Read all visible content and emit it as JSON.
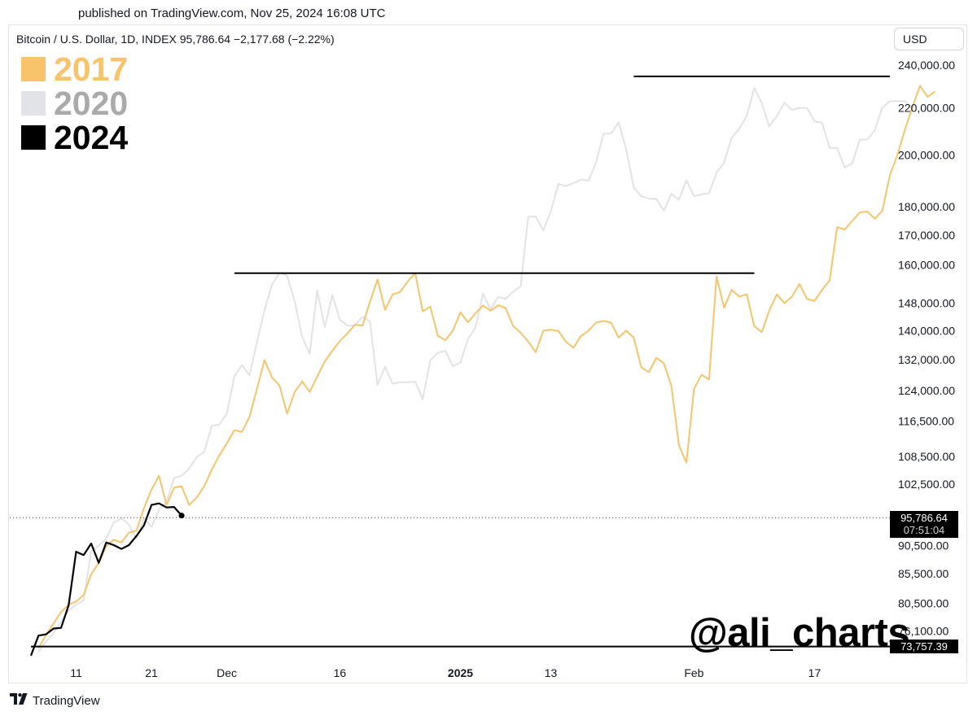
{
  "published": "published on TradingView.com, Nov 25, 2024 16:08 UTC",
  "symbol_line": "Bitcoin / U.S. Dollar, 1D, INDEX  95,786.64  −2,177.68 (−2.22%)",
  "currency_button": "USD",
  "watermark": "@ali_charts",
  "footer": {
    "brand": "TradingView",
    "logo_icon": "tradingview-logo-icon"
  },
  "colors": {
    "y2017": "#f7c46c",
    "y2020": "#e2e3e6",
    "y2024": "#000000"
  },
  "price_tag": {
    "price": "95,786.64",
    "countdown": "07:51:04"
  },
  "base_tag": "73,757.39",
  "chart_data": {
    "type": "line",
    "title": "",
    "y_scale": "log",
    "ylim": [
      72500,
      248000
    ],
    "y_ticks": [
      {
        "value": 240000,
        "label": "240,000.00"
      },
      {
        "value": 220000,
        "label": "220,000.00"
      },
      {
        "value": 200000,
        "label": "200,000.00"
      },
      {
        "value": 180000,
        "label": "180,000.00"
      },
      {
        "value": 170000,
        "label": "170,000.00"
      },
      {
        "value": 160000,
        "label": "160,000.00"
      },
      {
        "value": 148000,
        "label": "148,000.00"
      },
      {
        "value": 140000,
        "label": "140,000.00"
      },
      {
        "value": 132000,
        "label": "132,000.00"
      },
      {
        "value": 124000,
        "label": "124,000.00"
      },
      {
        "value": 116500,
        "label": "116,500.00"
      },
      {
        "value": 108500,
        "label": "108,500.00"
      },
      {
        "value": 102500,
        "label": "102,500.00"
      },
      {
        "value": 90500,
        "label": "90,500.00"
      },
      {
        "value": 85500,
        "label": "85,500.00"
      },
      {
        "value": 80500,
        "label": "80,500.00"
      },
      {
        "value": 76100,
        "label": "76,100.00"
      }
    ],
    "xlim": [
      "2024-11-05",
      "2025-02-27"
    ],
    "x_ticks": [
      {
        "date": "2024-11-11",
        "label": "11",
        "bold": false
      },
      {
        "date": "2024-11-21",
        "label": "21",
        "bold": false
      },
      {
        "date": "2024-12-01",
        "label": "Dec",
        "bold": false
      },
      {
        "date": "2024-12-16",
        "label": "16",
        "bold": false
      },
      {
        "date": "2025-01-01",
        "label": "2025",
        "bold": true
      },
      {
        "date": "2025-01-13",
        "label": "13",
        "bold": false
      },
      {
        "date": "2025-02-01",
        "label": "Feb",
        "bold": false
      },
      {
        "date": "2025-02-17",
        "label": "17",
        "bold": false
      }
    ],
    "series": [
      {
        "name": "2017",
        "start": "2024-11-06",
        "values": [
          73500,
          75500,
          77300,
          79100,
          80300,
          80800,
          81900,
          85400,
          87400,
          90400,
          91600,
          91100,
          92900,
          93300,
          97700,
          101400,
          104300,
          98300,
          101800,
          102100,
          98300,
          99800,
          102100,
          105600,
          108700,
          111400,
          114400,
          114000,
          117500,
          124400,
          131900,
          127300,
          125200,
          118300,
          123600,
          126300,
          123600,
          127600,
          131500,
          134400,
          137100,
          139200,
          141700,
          141400,
          148400,
          155300,
          146000,
          150700,
          151400,
          154700,
          157300,
          145600,
          147000,
          138600,
          137300,
          140000,
          145300,
          142400,
          145000,
          147300,
          145800,
          147400,
          146600,
          141300,
          139400,
          136900,
          134000,
          140000,
          140300,
          139900,
          136900,
          135200,
          138500,
          140000,
          142300,
          142800,
          142300,
          138000,
          140000,
          138000,
          130000,
          128700,
          132500,
          131000,
          125200,
          110900,
          107100,
          124400,
          128000,
          126800,
          156200,
          146700,
          152100,
          150000,
          150700,
          141300,
          139600,
          145900,
          150700,
          148000,
          150000,
          153900,
          149300,
          148700,
          152100,
          155000,
          172700,
          171900,
          174900,
          177900,
          178300,
          175700,
          178600,
          191900,
          200000,
          210500,
          220500,
          230000,
          225000,
          227500
        ]
      },
      {
        "name": "2020",
        "start": "2024-11-06",
        "values": [
          72900,
          74500,
          75800,
          77600,
          79300,
          80300,
          81000,
          89500,
          90500,
          91800,
          94800,
          95700,
          94500,
          91800,
          95700,
          94000,
          97400,
          98900,
          103800,
          104300,
          105800,
          108300,
          109500,
          115400,
          115700,
          118300,
          127500,
          130600,
          127800,
          136700,
          146000,
          153700,
          157500,
          156500,
          148700,
          138200,
          133600,
          151900,
          141000,
          150500,
          143100,
          141500,
          141400,
          144000,
          142600,
          125400,
          130100,
          125700,
          126100,
          126100,
          126200,
          121800,
          131800,
          133800,
          134400,
          130300,
          131200,
          137600,
          140900,
          150900,
          146200,
          149900,
          149300,
          151500,
          153200,
          176400,
          176500,
          171600,
          178300,
          188600,
          187700,
          188800,
          190200,
          189800,
          196900,
          208700,
          208900,
          213600,
          202300,
          187200,
          183900,
          183000,
          182900,
          178600,
          184800,
          182600,
          189900,
          183900,
          184600,
          185000,
          192900,
          196900,
          207100,
          210800,
          216400,
          229100,
          222100,
          211900,
          216400,
          222300,
          219100,
          220000,
          219900,
          214000,
          213500,
          202800,
          202800,
          194900,
          196600,
          206200,
          206300,
          210300,
          220100,
          223000,
          223000,
          223000,
          219900
        ]
      },
      {
        "name": "2024",
        "start": "2024-11-05",
        "values": [
          72400,
          75400,
          75600,
          76500,
          76600,
          80200,
          89400,
          88800,
          90900,
          87400,
          91100,
          90600,
          89900,
          90600,
          92300,
          94300,
          98300,
          98600,
          97800,
          97900,
          96200
        ]
      }
    ],
    "horizontal_lines": [
      {
        "value": 234500,
        "from": "2025-01-24",
        "to": "2025-02-27"
      },
      {
        "value": 157300,
        "from": "2024-12-02",
        "to": "2025-02-09"
      },
      {
        "value": 73757.39,
        "from": "2024-11-05",
        "to": "2025-02-27"
      }
    ],
    "last_price": 95786.64
  }
}
